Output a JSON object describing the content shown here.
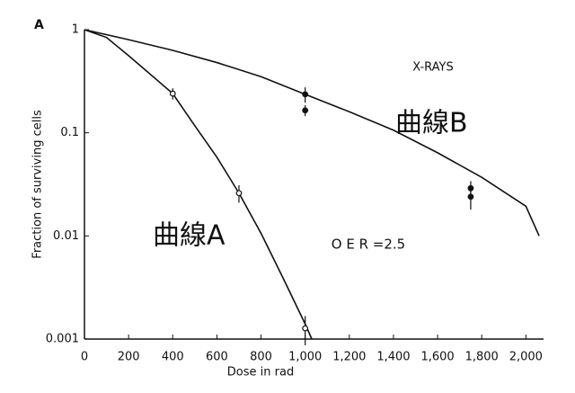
{
  "chart_data": {
    "type": "line",
    "panel_label": "A",
    "xlabel": "Dose in rad",
    "ylabel": "Fraction of surviving cells",
    "annotations": [
      "X-RAYS",
      "O E R =2.5"
    ],
    "log_y": true,
    "xlim": [
      0,
      2080
    ],
    "ylim": [
      0.001,
      1
    ],
    "xticks": [
      0,
      200,
      400,
      600,
      800,
      {
        "value": 1000,
        "label": "1,000"
      },
      {
        "value": 1200,
        "label": "1,200"
      },
      {
        "value": 1400,
        "label": "1,400"
      },
      {
        "value": 1600,
        "label": "1,600"
      },
      {
        "value": 1800,
        "label": "1,800"
      },
      {
        "value": 2000,
        "label": "2,000"
      }
    ],
    "yticks": [
      1,
      0.1,
      0.01,
      0.001
    ],
    "series": [
      {
        "name": "曲線A",
        "color": "#111111",
        "style": "line",
        "x": [
          0,
          100,
          200,
          400,
          500,
          600,
          700,
          800,
          900,
          1000,
          1030
        ],
        "values": [
          1,
          0.84,
          0.56,
          0.24,
          0.117,
          0.058,
          0.026,
          0.0106,
          0.0039,
          0.0014,
          0.001
        ]
      },
      {
        "name": "曲線B",
        "color": "#111111",
        "style": "line",
        "x": [
          0,
          200,
          400,
          600,
          800,
          1000,
          1200,
          1400,
          1600,
          1800,
          2000,
          2060
        ],
        "values": [
          1,
          0.8,
          0.63,
          0.48,
          0.35,
          0.236,
          0.16,
          0.106,
          0.064,
          0.037,
          0.0194,
          0.01
        ]
      },
      {
        "color": "#111111",
        "style": "points",
        "marker": "open",
        "x": [
          400,
          700,
          1000
        ],
        "values": [
          0.24,
          0.026,
          0.00127
        ],
        "errors": [
          0.03,
          0.005,
          0.0004
        ]
      },
      {
        "color": "#111111",
        "style": "points",
        "marker": "filled",
        "x": [
          1000,
          1000,
          1750,
          1750
        ],
        "values": [
          0.236,
          0.165,
          0.029,
          0.024
        ],
        "errors": [
          0.04,
          0.02,
          0.005,
          0.006
        ]
      }
    ]
  }
}
